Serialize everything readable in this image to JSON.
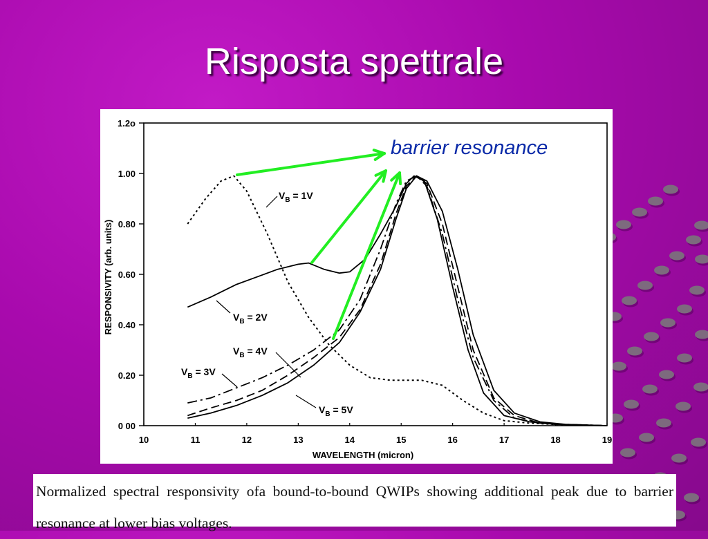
{
  "slide": {
    "title": "Risposta spettrale",
    "annotation": "barrier resonance",
    "caption": "Normalized spectral responsivity ofa bound-to-bound QWIPs showing additional peak due to barrier resonance at lower bias voltages."
  },
  "colors": {
    "background": "#a80aad",
    "arrow": "#22ee22",
    "annotation_text": "#0a2aa8"
  },
  "chart_data": {
    "type": "line",
    "xlabel": "WAVELENGTH (micron)",
    "ylabel": "RESPONSIVITY (arb. units)",
    "xlim": [
      10,
      19
    ],
    "ylim": [
      0,
      1.2
    ],
    "x_ticks": [
      "10",
      "11",
      "12",
      "13",
      "14",
      "15",
      "16",
      "17",
      "18",
      "19"
    ],
    "y_ticks": [
      {
        "value": 0,
        "label": "0 00"
      },
      {
        "value": 0.2,
        "label": "0.20"
      },
      {
        "value": 0.4,
        "label": "0.40"
      },
      {
        "value": 0.6,
        "label": "0.60"
      },
      {
        "value": 0.8,
        "label": "0.80"
      },
      {
        "value": 1.0,
        "label": "1.00"
      },
      {
        "value": 1.2,
        "label": "1.2o"
      }
    ],
    "series": [
      {
        "name": "VB = 1V",
        "dash": "dotted",
        "x": [
          10.85,
          11.2,
          11.5,
          11.75,
          12.0,
          12.4,
          12.8,
          13.2,
          13.6,
          14.0,
          14.4,
          14.8,
          15.1,
          15.4,
          15.8,
          16.2,
          16.6,
          17.0,
          17.5,
          18.0,
          18.5,
          19.0
        ],
        "y": [
          0.8,
          0.9,
          0.97,
          0.99,
          0.93,
          0.76,
          0.57,
          0.43,
          0.32,
          0.24,
          0.19,
          0.18,
          0.18,
          0.18,
          0.16,
          0.1,
          0.05,
          0.02,
          0.01,
          0.005,
          0.003,
          0.0
        ]
      },
      {
        "name": "VB = 2V",
        "dash": "solid",
        "x": [
          10.85,
          11.3,
          11.8,
          12.2,
          12.6,
          13.0,
          13.2,
          13.5,
          13.8,
          14.0,
          14.3,
          14.6,
          14.9,
          15.1,
          15.25,
          15.45,
          15.7,
          16.0,
          16.3,
          16.6,
          17.0,
          17.5,
          18.0,
          19.0
        ],
        "y": [
          0.47,
          0.51,
          0.56,
          0.59,
          0.62,
          0.64,
          0.645,
          0.62,
          0.605,
          0.61,
          0.66,
          0.76,
          0.87,
          0.96,
          0.99,
          0.97,
          0.82,
          0.55,
          0.3,
          0.13,
          0.04,
          0.015,
          0.005,
          0.0
        ]
      },
      {
        "name": "VB = 3V",
        "dash": "dashdot",
        "x": [
          10.85,
          11.3,
          11.8,
          12.3,
          12.8,
          13.3,
          13.8,
          14.2,
          14.6,
          14.9,
          15.1,
          15.3,
          15.5,
          15.8,
          16.1,
          16.4,
          16.8,
          17.2,
          17.7,
          18.2,
          19.0
        ],
        "y": [
          0.09,
          0.11,
          0.15,
          0.19,
          0.24,
          0.3,
          0.38,
          0.5,
          0.7,
          0.88,
          0.97,
          0.99,
          0.95,
          0.76,
          0.5,
          0.27,
          0.1,
          0.03,
          0.01,
          0.005,
          0.0
        ]
      },
      {
        "name": "VB = 4V",
        "dash": "dashed",
        "x": [
          10.85,
          11.3,
          11.8,
          12.3,
          12.8,
          13.3,
          13.8,
          14.2,
          14.6,
          14.9,
          15.1,
          15.3,
          15.5,
          15.8,
          16.1,
          16.4,
          16.8,
          17.2,
          17.7,
          18.2,
          19.0
        ],
        "y": [
          0.04,
          0.07,
          0.1,
          0.14,
          0.2,
          0.27,
          0.35,
          0.46,
          0.64,
          0.84,
          0.95,
          0.99,
          0.96,
          0.8,
          0.55,
          0.3,
          0.11,
          0.04,
          0.01,
          0.005,
          0.0
        ]
      },
      {
        "name": "VB = 5V",
        "dash": "solid",
        "x": [
          10.85,
          11.3,
          11.8,
          12.3,
          12.8,
          13.3,
          13.8,
          14.2,
          14.6,
          14.9,
          15.1,
          15.3,
          15.5,
          15.8,
          16.1,
          16.4,
          16.8,
          17.2,
          17.7,
          18.2,
          19.0
        ],
        "y": [
          0.03,
          0.05,
          0.08,
          0.12,
          0.17,
          0.24,
          0.33,
          0.45,
          0.62,
          0.82,
          0.94,
          0.99,
          0.97,
          0.85,
          0.62,
          0.36,
          0.14,
          0.05,
          0.015,
          0.005,
          0.0
        ]
      }
    ],
    "labels": [
      {
        "series": "VB = 1V",
        "text": "V",
        "sub": "B",
        "rest": " = 1V"
      },
      {
        "series": "VB = 2V",
        "text": "V",
        "sub": "B",
        "rest": " = 2V"
      },
      {
        "series": "VB = 3V",
        "text": "V",
        "sub": "B",
        "rest": " = 3V"
      },
      {
        "series": "VB = 4V",
        "text": "V",
        "sub": "B",
        "rest": " = 4V"
      },
      {
        "series": "VB = 5V",
        "text": "V",
        "sub": "B",
        "rest": " = 5V"
      }
    ]
  }
}
